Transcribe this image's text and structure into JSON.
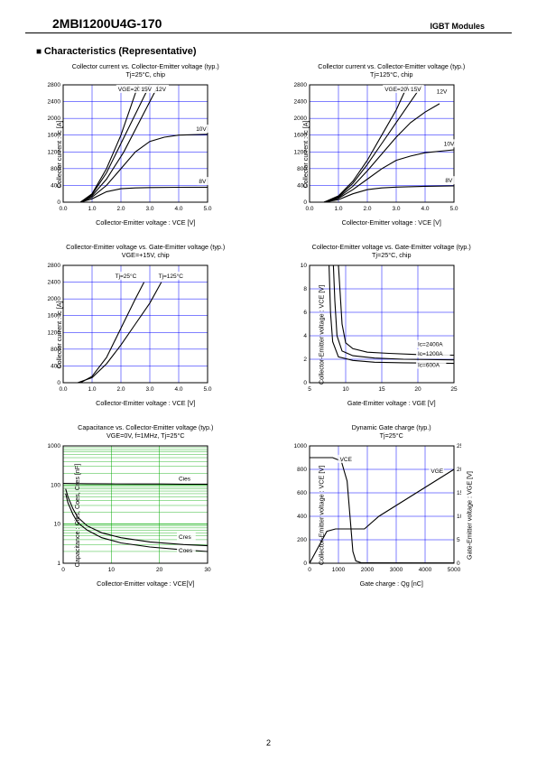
{
  "header": {
    "part_number": "2MBI1200U4G-170",
    "module_type": "IGBT Modules"
  },
  "section_title": "Characteristics (Representative)",
  "page_number": "2",
  "colors": {
    "grid": "#0000ff",
    "axis": "#000000",
    "curve": "#000000",
    "loggrid": "#00aa00",
    "bg": "#ffffff"
  },
  "chart1": {
    "title": "Collector current vs. Collector-Emitter voltage (typ.)",
    "subtitle": "Tj=25°C, chip",
    "xlabel": "Collector-Emitter voltage : VCE [V]",
    "ylabel": "Collector current : Ic [A]",
    "xlim": [
      0,
      5
    ],
    "xtick": [
      0.0,
      1.0,
      2.0,
      3.0,
      4.0,
      5.0
    ],
    "ylim": [
      0,
      2800
    ],
    "ytick": [
      0,
      400,
      800,
      1200,
      1600,
      2000,
      2400,
      2800
    ],
    "curves": {
      "20V": [
        [
          0.6,
          0
        ],
        [
          1.0,
          200
        ],
        [
          1.5,
          800
        ],
        [
          2.0,
          1600
        ],
        [
          2.3,
          2200
        ],
        [
          2.6,
          2800
        ]
      ],
      "15V": [
        [
          0.6,
          0
        ],
        [
          1.0,
          180
        ],
        [
          1.5,
          700
        ],
        [
          2.0,
          1400
        ],
        [
          2.5,
          2100
        ],
        [
          3.0,
          2800
        ]
      ],
      "12V": [
        [
          0.6,
          0
        ],
        [
          1.0,
          150
        ],
        [
          1.5,
          550
        ],
        [
          2.1,
          1200
        ],
        [
          2.7,
          2000
        ],
        [
          3.3,
          2800
        ]
      ],
      "10V": [
        [
          0.6,
          0
        ],
        [
          1.0,
          120
        ],
        [
          1.5,
          400
        ],
        [
          2.0,
          800
        ],
        [
          2.5,
          1200
        ],
        [
          3.0,
          1450
        ],
        [
          3.5,
          1550
        ],
        [
          4.0,
          1600
        ],
        [
          5.0,
          1620
        ]
      ],
      "8V": [
        [
          0.6,
          0
        ],
        [
          1.0,
          80
        ],
        [
          1.5,
          250
        ],
        [
          2.0,
          320
        ],
        [
          2.5,
          340
        ],
        [
          3.0,
          350
        ],
        [
          4.0,
          355
        ],
        [
          5.0,
          358
        ]
      ]
    },
    "curve_labels": [
      {
        "txt": "VGE=20V",
        "x": 1.9,
        "y": 2650
      },
      {
        "txt": "15V",
        "x": 2.7,
        "y": 2650
      },
      {
        "txt": "12V",
        "x": 3.2,
        "y": 2650
      },
      {
        "txt": "10V",
        "x": 4.6,
        "y": 1700
      },
      {
        "txt": "8V",
        "x": 4.7,
        "y": 450
      }
    ]
  },
  "chart2": {
    "title": "Collector current vs. Collector-Emitter voltage (typ.)",
    "subtitle": "Tj=125°C, chip",
    "xlabel": "Collector-Emitter voltage : VCE [V]",
    "ylabel": "Collector current : Ic [A]",
    "xlim": [
      0,
      5
    ],
    "xtick": [
      0.0,
      1.0,
      2.0,
      3.0,
      4.0,
      5.0
    ],
    "ylim": [
      0,
      2800
    ],
    "ytick": [
      0,
      400,
      800,
      1200,
      1600,
      2000,
      2400,
      2800
    ],
    "curves": {
      "20V": [
        [
          0.5,
          0
        ],
        [
          1.0,
          150
        ],
        [
          1.5,
          500
        ],
        [
          2.0,
          1000
        ],
        [
          2.5,
          1600
        ],
        [
          3.0,
          2200
        ],
        [
          3.4,
          2800
        ]
      ],
      "15V": [
        [
          0.5,
          0
        ],
        [
          1.0,
          130
        ],
        [
          1.5,
          450
        ],
        [
          2.0,
          900
        ],
        [
          2.5,
          1400
        ],
        [
          3.0,
          1900
        ],
        [
          3.5,
          2400
        ],
        [
          3.9,
          2800
        ]
      ],
      "12V": [
        [
          0.5,
          0
        ],
        [
          1.0,
          110
        ],
        [
          1.5,
          380
        ],
        [
          2.0,
          750
        ],
        [
          2.5,
          1150
        ],
        [
          3.0,
          1550
        ],
        [
          3.5,
          1900
        ],
        [
          4.0,
          2150
        ],
        [
          4.5,
          2350
        ]
      ],
      "10V": [
        [
          0.5,
          0
        ],
        [
          1.0,
          90
        ],
        [
          1.5,
          300
        ],
        [
          2.0,
          550
        ],
        [
          2.5,
          800
        ],
        [
          3.0,
          1000
        ],
        [
          3.5,
          1100
        ],
        [
          4.0,
          1180
        ],
        [
          5.0,
          1250
        ]
      ],
      "8V": [
        [
          0.5,
          0
        ],
        [
          1.0,
          60
        ],
        [
          1.5,
          200
        ],
        [
          2.0,
          300
        ],
        [
          2.5,
          340
        ],
        [
          3.0,
          360
        ],
        [
          4.0,
          380
        ],
        [
          5.0,
          390
        ]
      ]
    },
    "curve_labels": [
      {
        "txt": "VGE=20V",
        "x": 2.6,
        "y": 2650
      },
      {
        "txt": "15V",
        "x": 3.5,
        "y": 2650
      },
      {
        "txt": "12V",
        "x": 4.4,
        "y": 2600
      },
      {
        "txt": "10V",
        "x": 4.65,
        "y": 1350
      },
      {
        "txt": "8V",
        "x": 4.7,
        "y": 470
      }
    ]
  },
  "chart3": {
    "title": "Collector-Emitter voltage vs. Gate-Emitter voltage (typ.)",
    "subtitle": "VGE=+15V, chip",
    "xlabel": "Collector-Emitter voltage : VCE [V]",
    "ylabel": "Collector current : Ic [A]",
    "xlim": [
      0,
      5
    ],
    "xtick": [
      0.0,
      1.0,
      2.0,
      3.0,
      4.0,
      5.0
    ],
    "ylim": [
      0,
      2800
    ],
    "ytick": [
      0,
      400,
      800,
      1200,
      1600,
      2000,
      2400,
      2800
    ],
    "curves": {
      "Tj25": [
        [
          0.6,
          0
        ],
        [
          1.0,
          150
        ],
        [
          1.5,
          600
        ],
        [
          2.0,
          1300
        ],
        [
          2.5,
          2000
        ],
        [
          2.8,
          2400
        ]
      ],
      "Tj125": [
        [
          0.5,
          0
        ],
        [
          1.0,
          120
        ],
        [
          1.5,
          450
        ],
        [
          2.0,
          900
        ],
        [
          2.5,
          1400
        ],
        [
          3.0,
          1900
        ],
        [
          3.4,
          2400
        ]
      ]
    },
    "curve_labels": [
      {
        "txt": "Tj=25°C",
        "x": 1.8,
        "y": 2500
      },
      {
        "txt": "Tj=125°C",
        "x": 3.3,
        "y": 2500
      }
    ]
  },
  "chart4": {
    "title": "Collector-Emitter voltage vs. Gate-Emitter voltage (typ.)",
    "subtitle": "Tj=25°C, chip",
    "xlabel": "Gate-Emitter voltage : VGE [V]",
    "ylabel": "Collector-Emitter voltage : VCE [V]",
    "xlim": [
      5,
      25
    ],
    "xtick": [
      5,
      10,
      15,
      20,
      25
    ],
    "ylim": [
      0,
      10
    ],
    "ytick": [
      0,
      2,
      4,
      6,
      8,
      10
    ],
    "curves": {
      "2400A": [
        [
          9.0,
          10
        ],
        [
          9.2,
          8
        ],
        [
          9.5,
          5
        ],
        [
          10.0,
          3.4
        ],
        [
          11,
          2.9
        ],
        [
          13,
          2.6
        ],
        [
          16,
          2.5
        ],
        [
          20,
          2.4
        ],
        [
          25,
          2.35
        ]
      ],
      "1200A": [
        [
          8.3,
          10
        ],
        [
          8.5,
          7
        ],
        [
          8.8,
          4
        ],
        [
          9.5,
          2.7
        ],
        [
          11,
          2.3
        ],
        [
          14,
          2.1
        ],
        [
          18,
          2.0
        ],
        [
          25,
          1.95
        ]
      ],
      "600A": [
        [
          7.7,
          10
        ],
        [
          7.9,
          6
        ],
        [
          8.2,
          3.5
        ],
        [
          9.0,
          2.2
        ],
        [
          11,
          1.9
        ],
        [
          14,
          1.75
        ],
        [
          18,
          1.7
        ],
        [
          25,
          1.65
        ]
      ]
    },
    "curve_labels": [
      {
        "txt": "Ic=2400A",
        "x": 20,
        "y": 3.1
      },
      {
        "txt": "Ic=1200A",
        "x": 20,
        "y": 2.3
      },
      {
        "txt": "Ic=600A",
        "x": 20,
        "y": 1.35
      }
    ]
  },
  "chart5": {
    "title": "Capacitance vs. Collector-Emitter voltage (typ.)",
    "subtitle": "VGE=0V, f=1MHz, Tj=25°C",
    "xlabel": "Collector-Emitter voltage : VCE[V]",
    "ylabel": "Capacitance : Cies, Coes, Cres [nF]",
    "xlim": [
      0,
      30
    ],
    "xtick": [
      0,
      10,
      20,
      30
    ],
    "ylim": [
      1,
      1000
    ],
    "ylog": true,
    "ytick": [
      1,
      10,
      100,
      1000
    ],
    "curves": {
      "Cies": [
        [
          0,
          110
        ],
        [
          5,
          108
        ],
        [
          10,
          107
        ],
        [
          15,
          106
        ],
        [
          20,
          106
        ],
        [
          25,
          105
        ],
        [
          30,
          105
        ]
      ],
      "Cres": [
        [
          0.5,
          80
        ],
        [
          1,
          50
        ],
        [
          2,
          25
        ],
        [
          3,
          15
        ],
        [
          5,
          9
        ],
        [
          8,
          6
        ],
        [
          12,
          4.5
        ],
        [
          18,
          3.5
        ],
        [
          25,
          3
        ],
        [
          30,
          2.8
        ]
      ],
      "Coes": [
        [
          0.5,
          60
        ],
        [
          1,
          35
        ],
        [
          2,
          18
        ],
        [
          3,
          11
        ],
        [
          5,
          7
        ],
        [
          8,
          4.5
        ],
        [
          12,
          3.3
        ],
        [
          18,
          2.6
        ],
        [
          25,
          2.2
        ],
        [
          30,
          2.0
        ]
      ]
    },
    "curve_labels": [
      {
        "txt": "Cies",
        "x": 24,
        "y": 130
      },
      {
        "txt": "Cres",
        "x": 24,
        "y": 4.2
      },
      {
        "txt": "Coes",
        "x": 24,
        "y": 1.9
      }
    ]
  },
  "chart6": {
    "title": "Dynamic Gate charge (typ.)",
    "subtitle": "Tj=25°C",
    "xlabel": "Gate charge : Qg [nC]",
    "ylabel": "Collector-Emitter voltage : VCE [V]",
    "ylabel2": "Gate-Emitter voltage : VGE [V]",
    "xlim": [
      0,
      5000
    ],
    "xtick": [
      0,
      1000,
      2000,
      3000,
      4000,
      5000
    ],
    "ylim": [
      0,
      1000
    ],
    "ytick": [
      0,
      200,
      400,
      600,
      800,
      1000
    ],
    "ylim2": [
      0,
      25
    ],
    "ytick2": [
      0,
      5,
      10,
      15,
      20,
      25
    ],
    "curves": {
      "VCE": [
        [
          0,
          900
        ],
        [
          800,
          900
        ],
        [
          1100,
          870
        ],
        [
          1300,
          700
        ],
        [
          1400,
          400
        ],
        [
          1500,
          100
        ],
        [
          1600,
          20
        ],
        [
          1800,
          3
        ],
        [
          5000,
          2
        ]
      ],
      "VGE": [
        [
          0,
          0
        ],
        [
          600,
          6.8
        ],
        [
          900,
          7.3
        ],
        [
          1900,
          7.3
        ],
        [
          2400,
          10
        ],
        [
          5000,
          20
        ]
      ]
    },
    "curve_labels": [
      {
        "txt": "VCE",
        "x": 1050,
        "y": 870
      },
      {
        "txt": "VGE",
        "x": 4200,
        "y": 770
      }
    ]
  }
}
